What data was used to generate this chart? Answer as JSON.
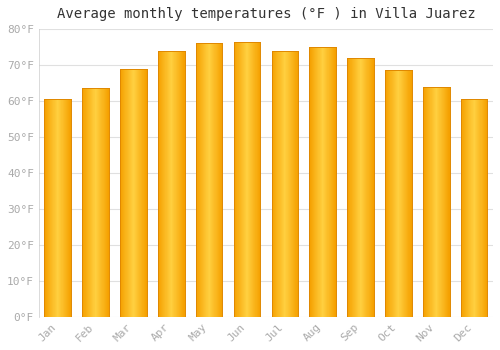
{
  "title": "Average monthly temperatures (°F ) in Villa Juarez",
  "months": [
    "Jan",
    "Feb",
    "Mar",
    "Apr",
    "May",
    "Jun",
    "Jul",
    "Aug",
    "Sep",
    "Oct",
    "Nov",
    "Dec"
  ],
  "values": [
    60.5,
    63.5,
    69.0,
    74.0,
    76.0,
    76.5,
    74.0,
    75.0,
    72.0,
    68.5,
    64.0,
    60.5
  ],
  "bar_color_center": "#FFD040",
  "bar_color_edge": "#F5A000",
  "background_color": "#ffffff",
  "plot_bg_color": "#ffffff",
  "grid_color": "#e0e0e0",
  "ylim": [
    0,
    80
  ],
  "yticks": [
    0,
    10,
    20,
    30,
    40,
    50,
    60,
    70,
    80
  ],
  "ytick_labels": [
    "0°F",
    "10°F",
    "20°F",
    "30°F",
    "40°F",
    "50°F",
    "60°F",
    "70°F",
    "80°F"
  ],
  "title_fontsize": 10,
  "tick_fontsize": 8,
  "tick_font_color": "#aaaaaa",
  "bar_width": 0.7
}
